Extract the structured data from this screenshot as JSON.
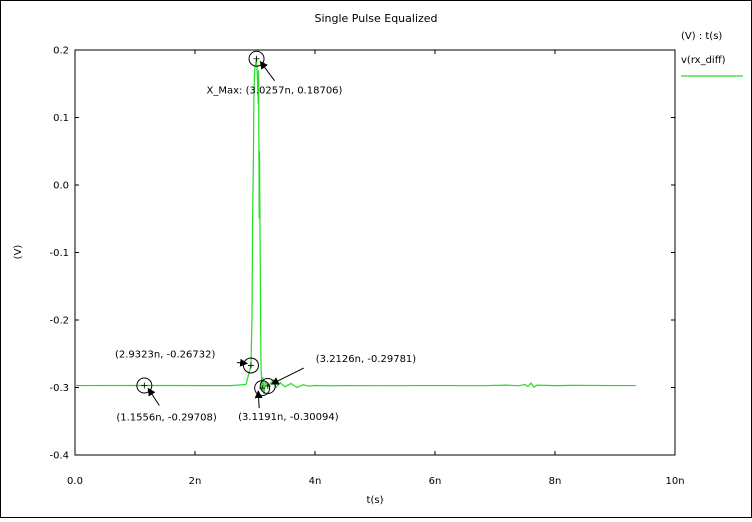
{
  "chart_data": {
    "type": "line",
    "title": "Single Pulse Equalized",
    "xlabel": "t(s)",
    "ylabel": "(V)",
    "xlim": [
      0,
      10
    ],
    "ylim": [
      -0.4,
      0.2
    ],
    "x_ticks": [
      {
        "value": 0,
        "label": "0.0"
      },
      {
        "value": 2,
        "label": "2n"
      },
      {
        "value": 4,
        "label": "4n"
      },
      {
        "value": 6,
        "label": "6n"
      },
      {
        "value": 8,
        "label": "8n"
      },
      {
        "value": 10,
        "label": "10n"
      }
    ],
    "y_ticks": [
      {
        "value": 0.2,
        "label": "0.2"
      },
      {
        "value": 0.1,
        "label": "0.1"
      },
      {
        "value": 0.0,
        "label": "0.0"
      },
      {
        "value": -0.1,
        "label": "-0.1"
      },
      {
        "value": -0.2,
        "label": "-0.2"
      },
      {
        "value": -0.3,
        "label": "-0.3"
      },
      {
        "value": -0.4,
        "label": "-0.4"
      }
    ],
    "grid": false,
    "legend": {
      "placement": "right",
      "header": "(V) : t(s)"
    },
    "series": [
      {
        "name": "v(rx_diff)",
        "color": "#22dd22",
        "x": [
          0.0,
          1.1556,
          2.6,
          2.85,
          2.9323,
          2.95,
          2.96,
          2.975,
          2.98,
          2.99,
          3.0,
          3.0257,
          3.04,
          3.055,
          3.06,
          3.07,
          3.075,
          3.09,
          3.1,
          3.1191,
          3.13,
          3.15,
          3.17,
          3.2126,
          3.26,
          3.3,
          3.35,
          3.42,
          3.5,
          3.6,
          3.7,
          3.8,
          3.9,
          4.0,
          4.2,
          4.5,
          5.0,
          6.0,
          6.8,
          7.2,
          7.4,
          7.5,
          7.55,
          7.6,
          7.65,
          7.7,
          8.0,
          8.3,
          9.0,
          9.35
        ],
        "y": [
          -0.2971,
          -0.29708,
          -0.2972,
          -0.2955,
          -0.26732,
          -0.2,
          -0.05,
          0.05,
          0.12,
          0.16,
          0.175,
          0.18706,
          0.16,
          0.12,
          0.17,
          -0.05,
          0.05,
          -0.15,
          -0.27,
          -0.30094,
          -0.285,
          -0.31,
          -0.292,
          -0.29781,
          -0.294,
          -0.289,
          -0.3,
          -0.293,
          -0.299,
          -0.294,
          -0.3,
          -0.296,
          -0.298,
          -0.297,
          -0.2975,
          -0.2972,
          -0.2973,
          -0.2971,
          -0.2973,
          -0.2965,
          -0.2975,
          -0.2955,
          -0.2985,
          -0.2935,
          -0.2995,
          -0.2965,
          -0.2972,
          -0.2968,
          -0.2971,
          -0.2971
        ]
      }
    ],
    "annotations": [
      {
        "x": 3.0257,
        "y": 0.18706,
        "label": "X_Max: (3.0257n, 0.18706)"
      },
      {
        "x": 1.1556,
        "y": -0.29708,
        "label": "(1.1556n, -0.29708)"
      },
      {
        "x": 2.9323,
        "y": -0.26732,
        "label": "(2.9323n, -0.26732)"
      },
      {
        "x": 3.1191,
        "y": -0.30094,
        "label": "(3.1191n, -0.30094)"
      },
      {
        "x": 3.2126,
        "y": -0.29781,
        "label": "(3.2126n, -0.29781)"
      }
    ]
  }
}
